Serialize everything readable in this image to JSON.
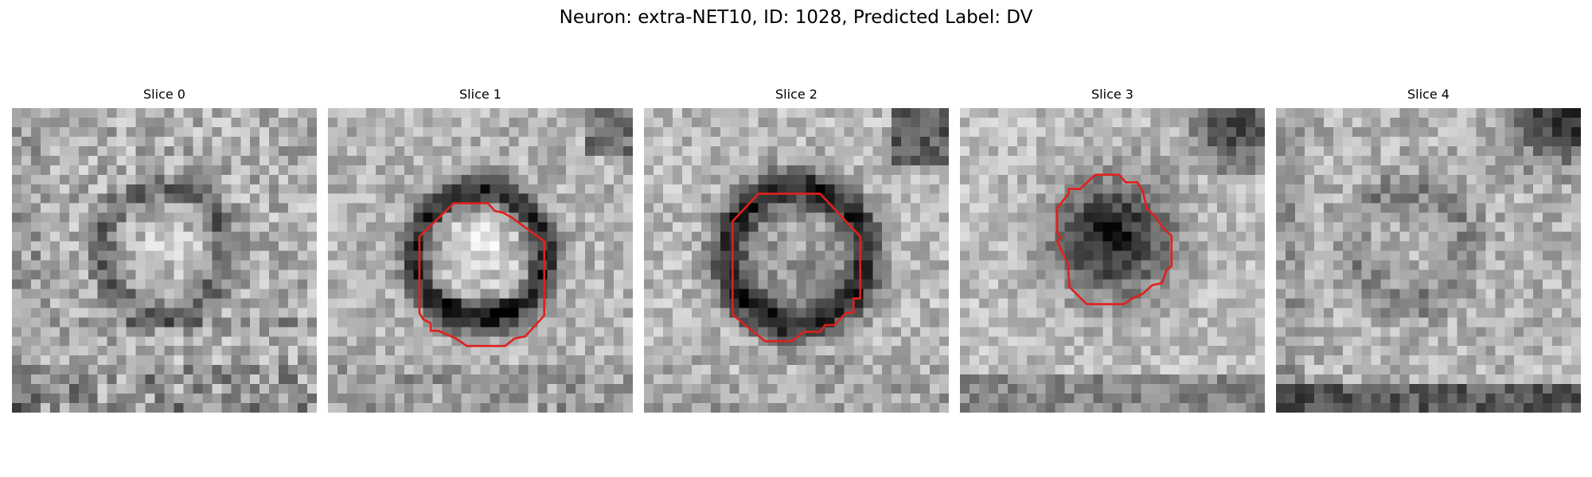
{
  "figure": {
    "title": "Neuron: extra-NET10, ID: 1028, Predicted Label: DV"
  },
  "panels": [
    {
      "title": "Slice 0",
      "has_contour": false
    },
    {
      "title": "Slice 1",
      "has_contour": true
    },
    {
      "title": "Slice 2",
      "has_contour": true
    },
    {
      "title": "Slice 3",
      "has_contour": true
    },
    {
      "title": "Slice 4",
      "has_contour": false
    }
  ],
  "colors": {
    "contour": "#e0201c"
  }
}
